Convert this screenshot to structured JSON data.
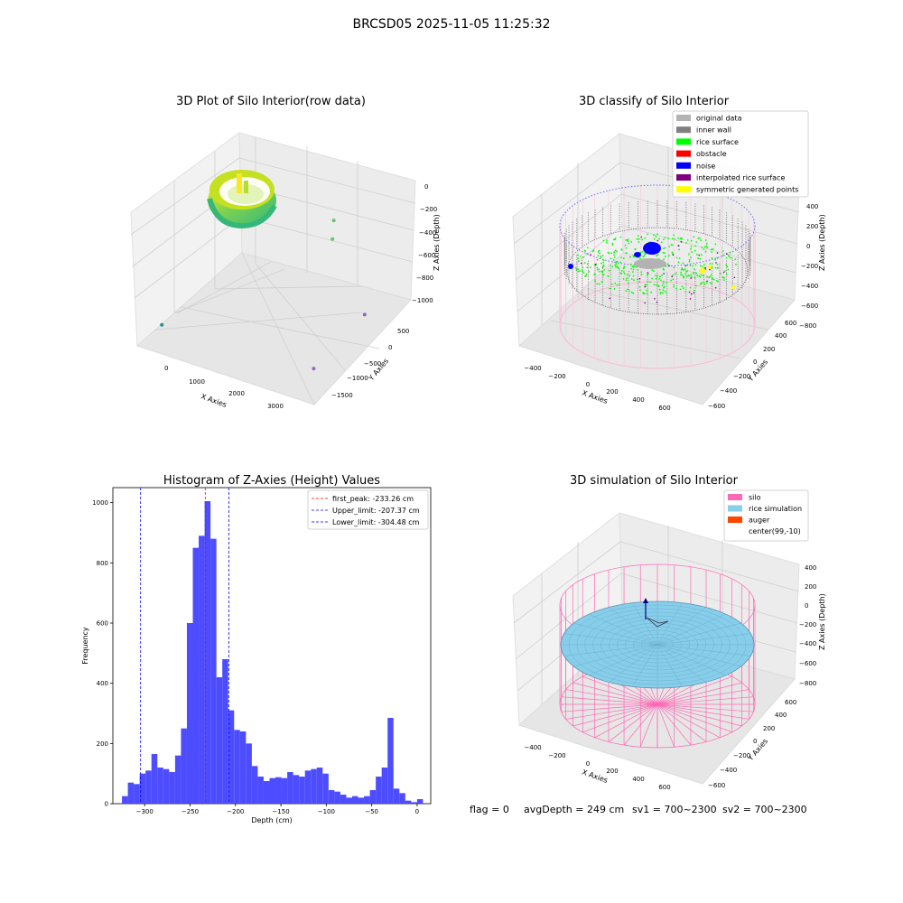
{
  "suptitle": "BRCSD05 2025-11-05 11:25:32",
  "footer": {
    "flag": "flag = 0",
    "avg_depth": "avgDepth = 249 cm",
    "sv1": "sv1 = 700~2300",
    "sv2": "sv2 = 700~2300"
  },
  "chart_data": [
    {
      "type": "scatter",
      "title": "3D Plot of Silo Interior(row data)",
      "xlabel": "X Axies",
      "ylabel": "Y Axies",
      "zlabel": "Z Axies (Depth)",
      "x_ticks": [
        "0",
        "1000",
        "2000",
        "3000"
      ],
      "y_ticks": [
        "500",
        "0",
        "−500",
        "−1000",
        "−1500"
      ],
      "z_ticks": [
        "0",
        "−200",
        "−400",
        "−600",
        "−800",
        "−1000"
      ],
      "colormap": [
        "#440154",
        "#21918c",
        "#5ec962",
        "#fde725"
      ],
      "outliers": [
        {
          "x": 0,
          "y": -1500,
          "z": -850,
          "color": "#21918c"
        },
        {
          "x": 2200,
          "y": 450,
          "z": -280,
          "color": "#5ec962"
        },
        {
          "x": 2300,
          "y": 300,
          "z": -380,
          "color": "#5ec962"
        },
        {
          "x": 3000,
          "y": -1000,
          "z": -1000,
          "color": "#9467bd"
        },
        {
          "x": 3200,
          "y": 100,
          "z": -850,
          "color": "#8e6ab5"
        }
      ]
    },
    {
      "type": "scatter",
      "title": "3D classify of Silo Interior",
      "xlabel": "X Axies",
      "ylabel": "Y Axies",
      "zlabel": "Z Axies (Depth)",
      "x_ticks": [
        "−400",
        "−200",
        "0",
        "200",
        "400",
        "600"
      ],
      "y_ticks": [
        "600",
        "400",
        "200",
        "0",
        "−200",
        "−400",
        "−600"
      ],
      "z_ticks": [
        "400",
        "200",
        "0",
        "−200",
        "−400",
        "−600",
        "−800"
      ],
      "legend_position": "top-right",
      "legend": [
        {
          "label": "original data",
          "color": "#b3b3b3"
        },
        {
          "label": "inner wall",
          "color": "#808080"
        },
        {
          "label": "rice surface",
          "color": "#00ff00"
        },
        {
          "label": "obstacle",
          "color": "#ff0000"
        },
        {
          "label": "noise",
          "color": "#0000ff"
        },
        {
          "label": "interpolated rice surface",
          "color": "#800080"
        },
        {
          "label": "symmetric generated points",
          "color": "#ffff00"
        }
      ]
    },
    {
      "type": "bar",
      "title": "Histogram of Z-Axies (Height) Values",
      "xlabel": "Depth (cm)",
      "ylabel": "Frequency",
      "bar_color": "#4040ff",
      "xlim": [
        -335,
        15
      ],
      "ylim": [
        0,
        1050
      ],
      "x_ticks": [
        -300,
        -250,
        -200,
        -150,
        -100,
        -50,
        0
      ],
      "y_ticks": [
        0,
        200,
        400,
        600,
        800,
        1000
      ],
      "bin_start": -325,
      "bin_width": 6.5,
      "values": [
        25,
        70,
        65,
        100,
        110,
        165,
        120,
        115,
        105,
        160,
        250,
        600,
        850,
        890,
        1005,
        880,
        420,
        480,
        310,
        245,
        240,
        200,
        125,
        90,
        75,
        85,
        88,
        85,
        105,
        95,
        90,
        110,
        115,
        120,
        100,
        45,
        40,
        30,
        20,
        25,
        20,
        25,
        45,
        90,
        120,
        285,
        50,
        35,
        10,
        5,
        15
      ],
      "legend_position": "top-right",
      "lines": [
        {
          "label": "first_peak: -233.26 cm",
          "x": -233.26,
          "color": "#ff0000"
        },
        {
          "label": "Upper_limit: -207.37 cm",
          "x": -207.37,
          "color": "#0000ff"
        },
        {
          "label": "Lower_limit: -304.48 cm",
          "x": -304.48,
          "color": "#0000ff"
        }
      ]
    },
    {
      "type": "scatter",
      "title": "3D simulation of Silo Interior",
      "xlabel": "X Axies",
      "ylabel": "Y Axies",
      "zlabel": "Z Axies (Depth)",
      "x_ticks": [
        "−400",
        "−200",
        "0",
        "200",
        "400",
        "600"
      ],
      "y_ticks": [
        "600",
        "400",
        "200",
        "0",
        "−200",
        "−400",
        "−600"
      ],
      "z_ticks": [
        "400",
        "200",
        "0",
        "−200",
        "−400",
        "−600",
        "−800"
      ],
      "legend_position": "top-right",
      "legend": [
        {
          "label": "silo",
          "color": "#ff69b4"
        },
        {
          "label": "rice simulation",
          "color": "#87ceeb"
        },
        {
          "label": "auger",
          "color": "#ff4500"
        },
        {
          "label": "center(99,-10)",
          "color": ""
        }
      ]
    }
  ]
}
